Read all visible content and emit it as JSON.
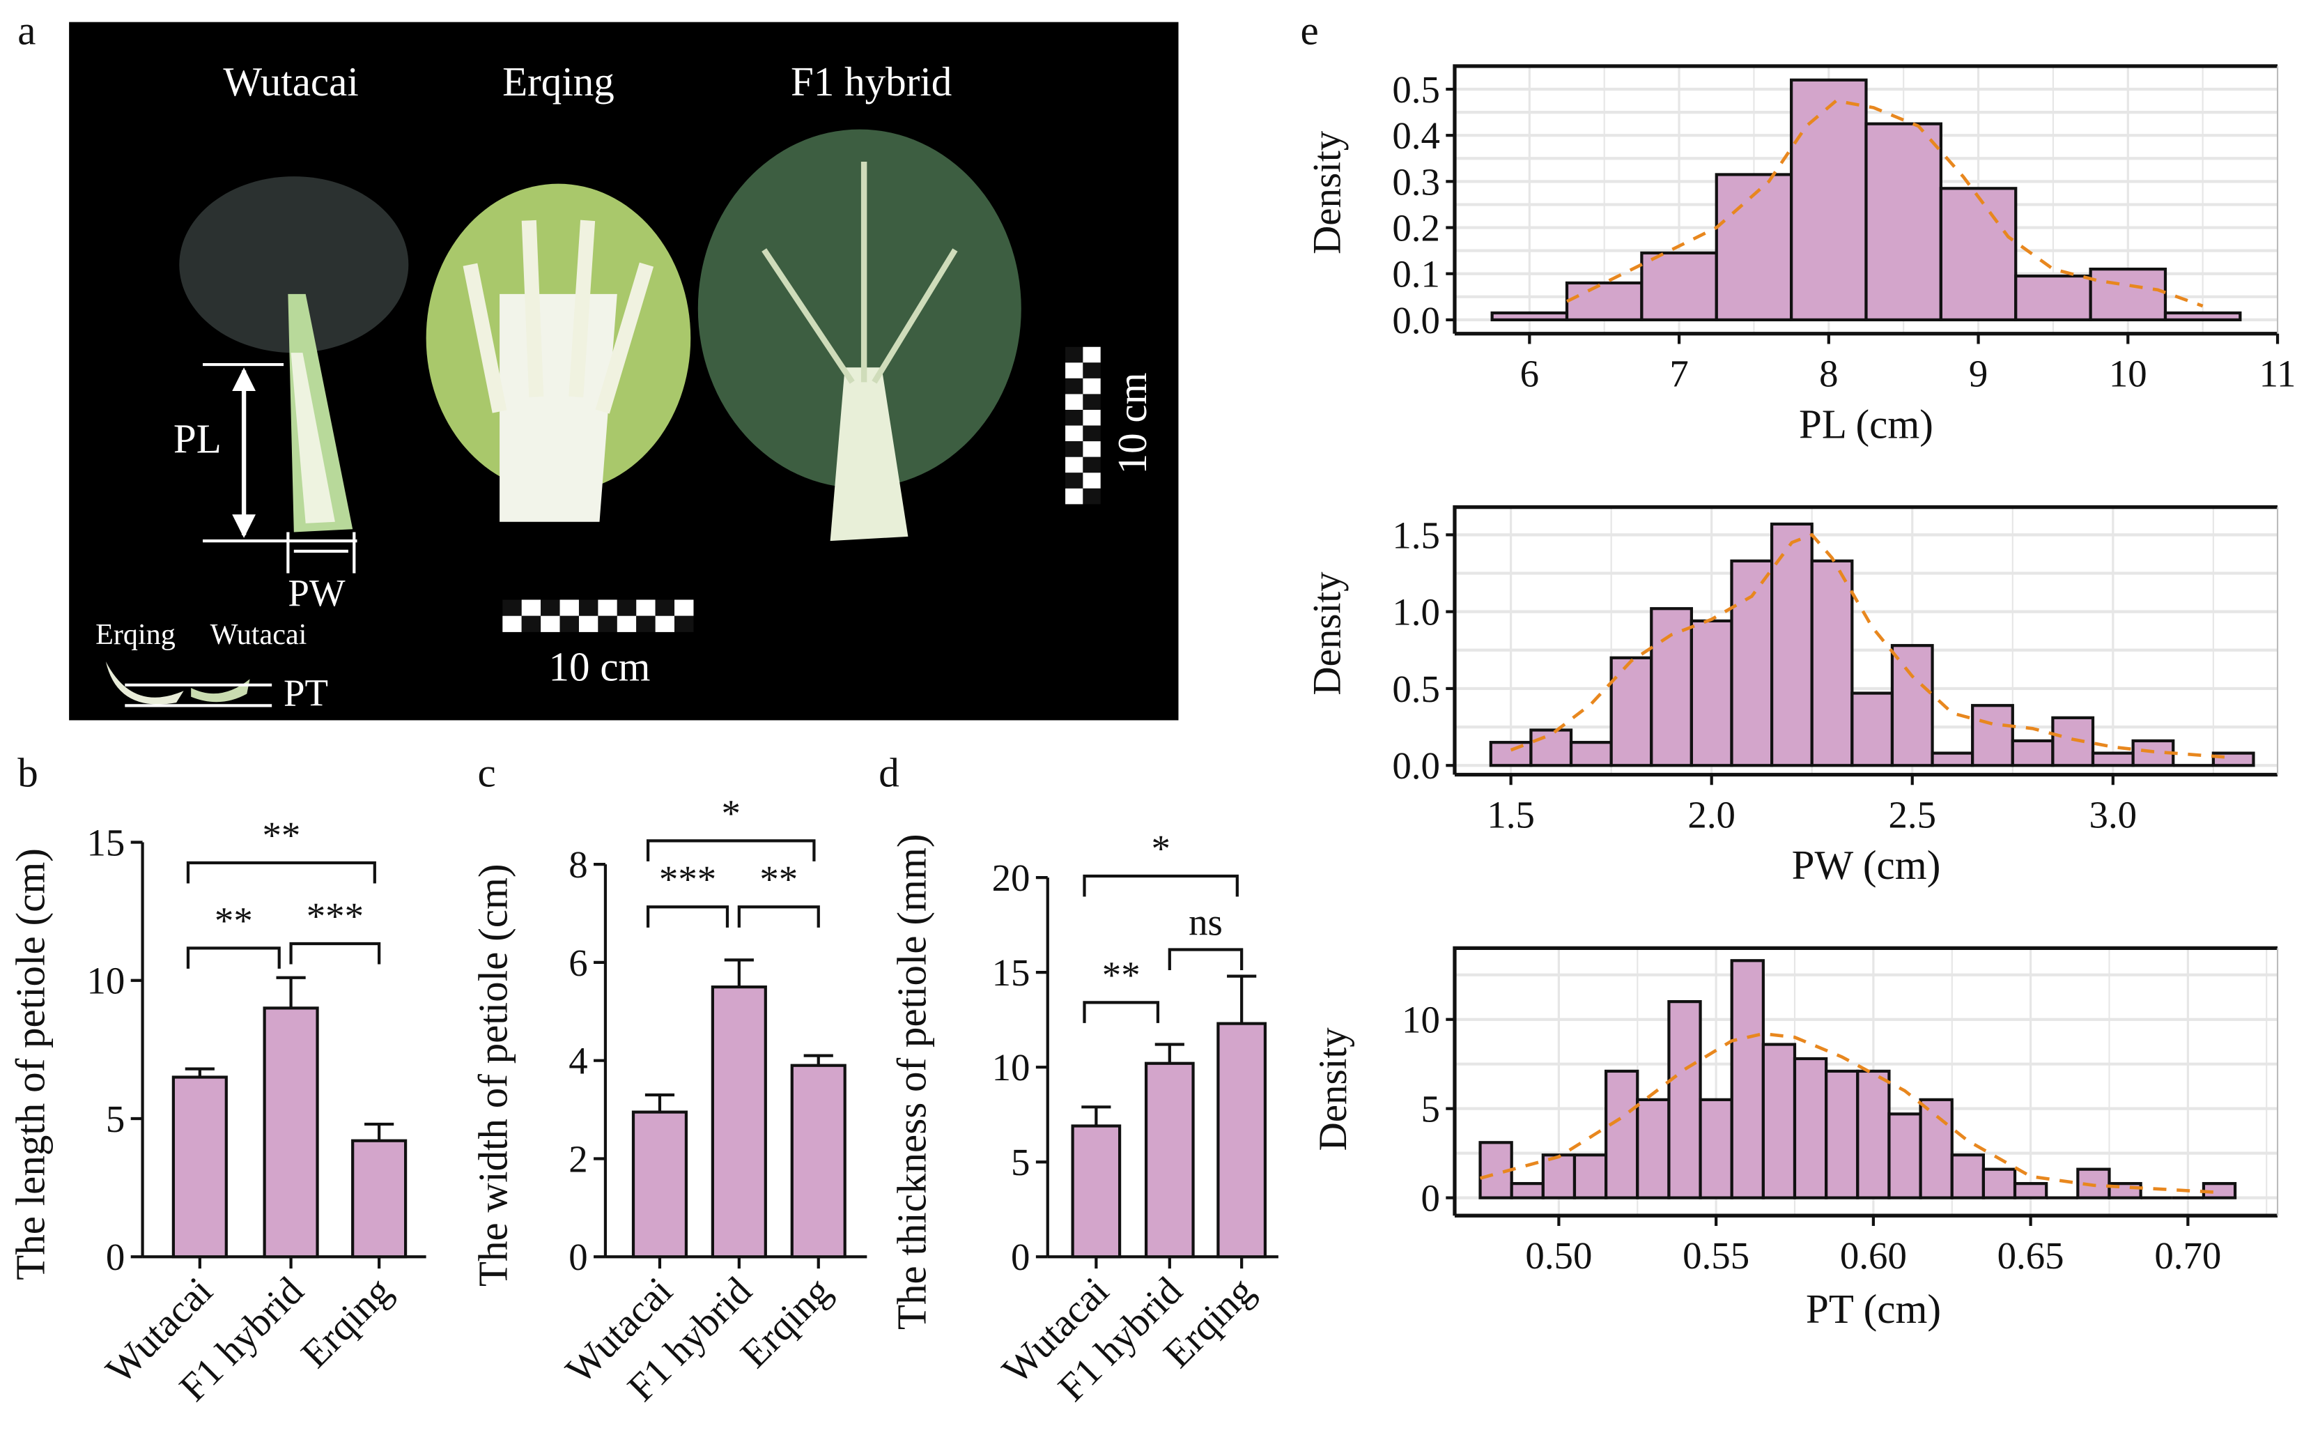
{
  "colors": {
    "bar": "#d3a5cb",
    "edge": "#111111",
    "curve": "#e8871e",
    "grid": "#e6e6e6",
    "photo_bg": "#000000"
  },
  "panel_a": {
    "letter": "a",
    "labels": [
      "Wutacai",
      "Erqing",
      "F1 hybrid"
    ],
    "pl": "PL",
    "pw": "PW",
    "pt": "PT",
    "scale_h": "10 cm",
    "scale_v": "10 cm",
    "inset_labels": [
      "Erqing",
      "Wutacai"
    ]
  },
  "chart_data": [
    {
      "type": "bar",
      "letter": "b",
      "categories": [
        "Wutacai",
        "F1 hybrid",
        "Erqing"
      ],
      "values": [
        6.5,
        9.0,
        4.2
      ],
      "errors": [
        0.3,
        1.1,
        0.6
      ],
      "ylabel": "The length of petiole (cm)",
      "ylim": [
        0,
        15
      ],
      "yticks": [
        0,
        5,
        10,
        15
      ],
      "significance": [
        {
          "label": "**",
          "from": 0,
          "to": 2
        },
        {
          "label": "**",
          "from": 0,
          "to": 1
        },
        {
          "label": "***",
          "from": 1,
          "to": 2
        }
      ]
    },
    {
      "type": "bar",
      "letter": "c",
      "categories": [
        "Wutacai",
        "F1 hybrid",
        "Erqing"
      ],
      "values": [
        2.95,
        5.5,
        3.9
      ],
      "errors": [
        0.35,
        0.55,
        0.2
      ],
      "ylabel": "The width of petiole (cm)",
      "ylim": [
        0,
        8
      ],
      "yticks": [
        0,
        2,
        4,
        6,
        8
      ],
      "significance": [
        {
          "label": "*",
          "from": 0,
          "to": 2
        },
        {
          "label": "***",
          "from": 0,
          "to": 1
        },
        {
          "label": "**",
          "from": 1,
          "to": 2
        }
      ]
    },
    {
      "type": "bar",
      "letter": "d",
      "categories": [
        "Wutacai",
        "F1 hybrid",
        "Erqing"
      ],
      "values": [
        6.9,
        10.2,
        12.3
      ],
      "errors": [
        1.0,
        1.0,
        2.5
      ],
      "ylabel": "The thickness of petiole (mm)",
      "ylim": [
        0,
        20
      ],
      "yticks": [
        0,
        5,
        10,
        15,
        20
      ],
      "significance": [
        {
          "label": "*",
          "from": 0,
          "to": 2
        },
        {
          "label": "**",
          "from": 0,
          "to": 1
        },
        {
          "label": "ns",
          "from": 1,
          "to": 2
        }
      ]
    },
    {
      "type": "histogram",
      "letter": "e",
      "xlabel": "PL (cm)",
      "ylabel": "Density",
      "bin_start": 5.75,
      "bin_width": 0.5,
      "values": [
        0.015,
        0.08,
        0.145,
        0.315,
        0.52,
        0.425,
        0.285,
        0.095,
        0.11,
        0.015
      ],
      "xticks": [
        6,
        7,
        8,
        9,
        10,
        11
      ],
      "yticks": [
        0.0,
        0.1,
        0.2,
        0.3,
        0.4,
        0.5
      ],
      "ytick_labels": [
        "0.0",
        "0.1",
        "0.2",
        "0.3",
        "0.4",
        "0.5"
      ],
      "xlim": [
        5.5,
        11
      ],
      "ylim": [
        -0.03,
        0.55
      ],
      "density": [
        [
          6.25,
          0.04
        ],
        [
          6.75,
          0.12
        ],
        [
          7.25,
          0.2
        ],
        [
          7.6,
          0.3
        ],
        [
          7.85,
          0.42
        ],
        [
          8.05,
          0.475
        ],
        [
          8.3,
          0.46
        ],
        [
          8.6,
          0.42
        ],
        [
          8.9,
          0.31
        ],
        [
          9.2,
          0.18
        ],
        [
          9.5,
          0.11
        ],
        [
          9.8,
          0.085
        ],
        [
          10.2,
          0.065
        ],
        [
          10.5,
          0.03
        ]
      ]
    },
    {
      "type": "histogram",
      "xlabel": "PW (cm)",
      "ylabel": "Density",
      "bin_start": 1.45,
      "bin_width": 0.1,
      "values": [
        0.15,
        0.23,
        0.15,
        0.7,
        1.02,
        0.94,
        1.33,
        1.57,
        1.33,
        0.47,
        0.78,
        0.08,
        0.39,
        0.16,
        0.31,
        0.08,
        0.16,
        0,
        0.08
      ],
      "xticks": [
        1.5,
        2.0,
        2.5,
        3.0
      ],
      "yticks": [
        0,
        0.5,
        1.0,
        1.5
      ],
      "ytick_labels": [
        "0.0",
        "0.5",
        "1.0",
        "1.5"
      ],
      "xlim": [
        1.36,
        3.41
      ],
      "ylim": [
        -0.06,
        1.68
      ],
      "density": [
        [
          1.5,
          0.1
        ],
        [
          1.6,
          0.2
        ],
        [
          1.7,
          0.4
        ],
        [
          1.8,
          0.68
        ],
        [
          1.9,
          0.85
        ],
        [
          2.0,
          0.95
        ],
        [
          2.1,
          1.1
        ],
        [
          2.2,
          1.45
        ],
        [
          2.25,
          1.5
        ],
        [
          2.3,
          1.35
        ],
        [
          2.4,
          0.9
        ],
        [
          2.5,
          0.58
        ],
        [
          2.6,
          0.34
        ],
        [
          2.7,
          0.27
        ],
        [
          2.8,
          0.24
        ],
        [
          2.9,
          0.17
        ],
        [
          3.0,
          0.12
        ],
        [
          3.1,
          0.09
        ],
        [
          3.2,
          0.07
        ],
        [
          3.3,
          0.05
        ]
      ]
    },
    {
      "type": "histogram",
      "xlabel": "PT (cm)",
      "ylabel": "Density",
      "bin_start": 0.475,
      "bin_width": 0.01,
      "values": [
        3.1,
        0.8,
        2.4,
        2.4,
        7.1,
        5.5,
        11.0,
        5.5,
        13.3,
        8.6,
        7.8,
        7.1,
        7.1,
        4.7,
        5.5,
        2.4,
        1.6,
        0.8,
        0,
        1.6,
        0.8,
        0,
        0,
        0.8
      ],
      "xticks": [
        0.5,
        0.55,
        0.6,
        0.65,
        0.7
      ],
      "yticks": [
        0,
        5,
        10
      ],
      "ytick_labels": [
        "0",
        "5",
        "10"
      ],
      "xticklabels": [
        "0.50",
        "0.55",
        "0.60",
        "0.65",
        "0.70"
      ],
      "xlim": [
        0.4669,
        0.7285
      ],
      "ylim": [
        -1,
        14
      ],
      "density": [
        [
          0.475,
          1.1
        ],
        [
          0.5,
          2.3
        ],
        [
          0.52,
          4.5
        ],
        [
          0.54,
          7.2
        ],
        [
          0.555,
          8.8
        ],
        [
          0.565,
          9.2
        ],
        [
          0.575,
          9.0
        ],
        [
          0.59,
          7.9
        ],
        [
          0.61,
          6.0
        ],
        [
          0.63,
          3.2
        ],
        [
          0.65,
          1.2
        ],
        [
          0.67,
          0.7
        ],
        [
          0.69,
          0.5
        ],
        [
          0.71,
          0.3
        ]
      ]
    }
  ]
}
